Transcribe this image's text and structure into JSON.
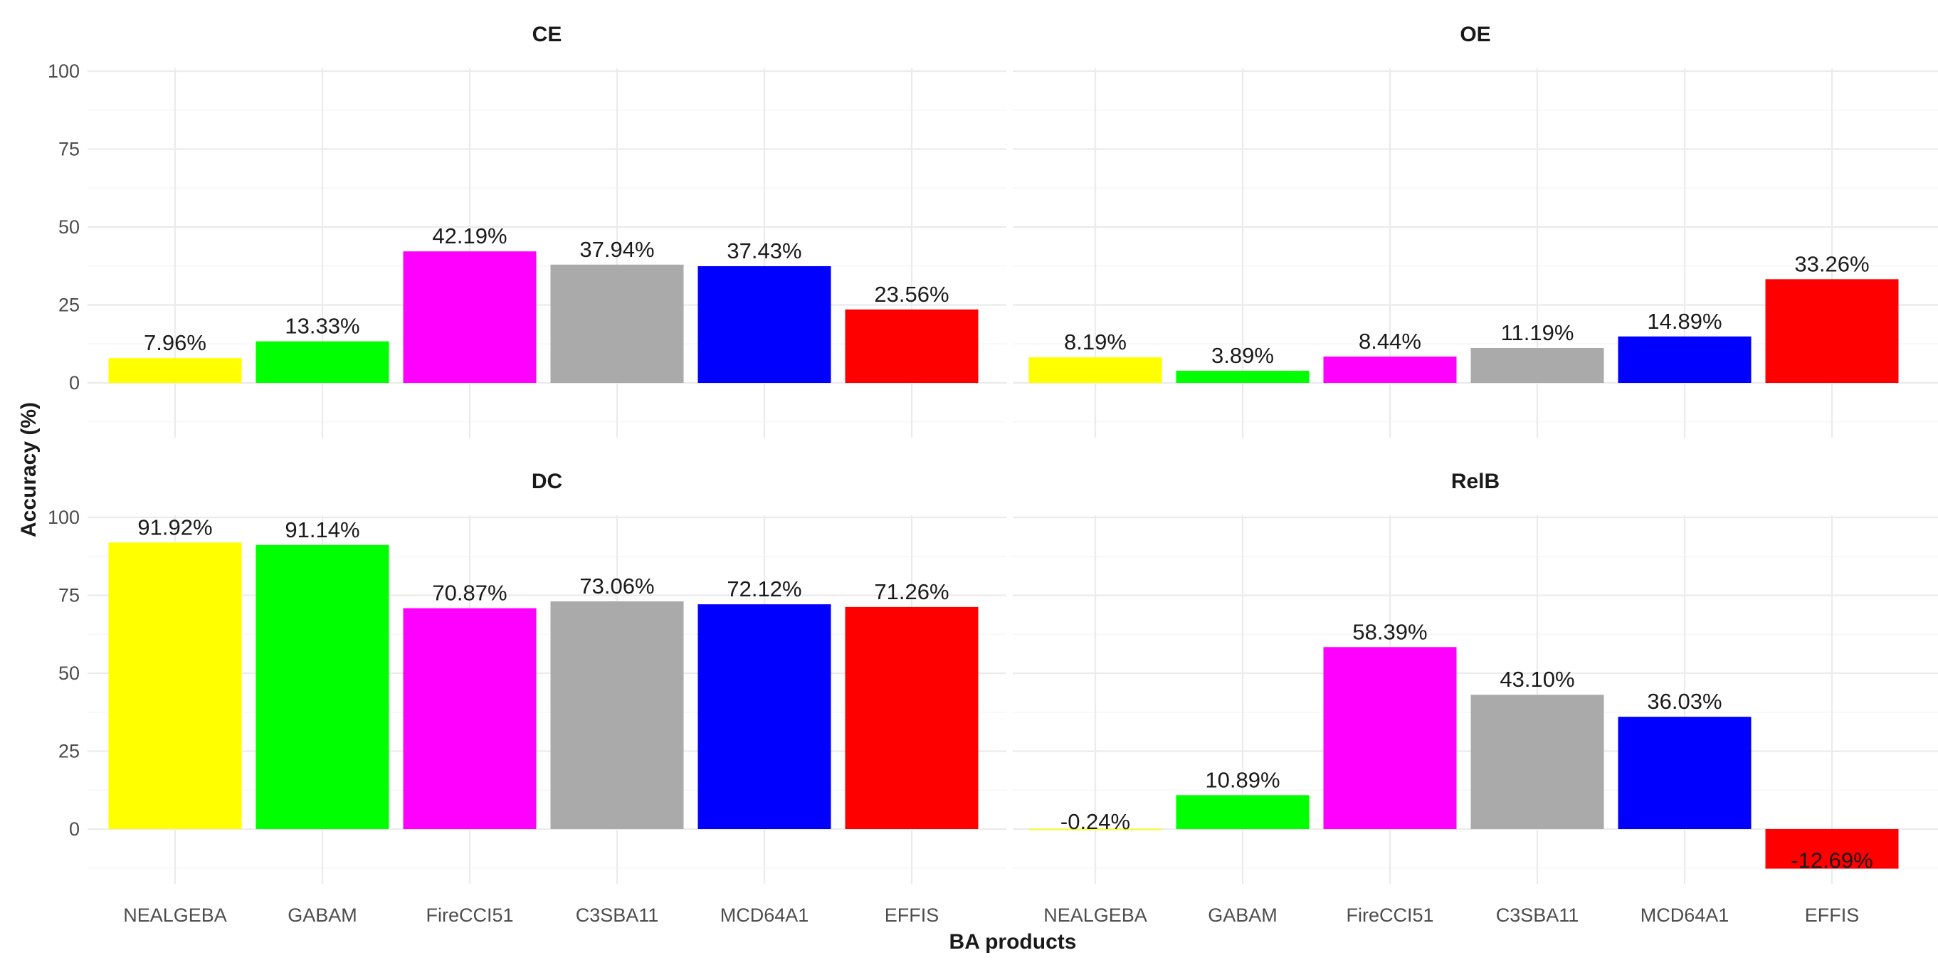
{
  "chart_data": {
    "type": "bar",
    "xlabel": "BA products",
    "ylabel": "Accuracy (%)",
    "categories": [
      "NEALGEBA",
      "GABAM",
      "FireCCI51",
      "C3SBA11",
      "MCD64A1",
      "EFFIS"
    ],
    "colors": [
      "#FFFF00",
      "#00FF00",
      "#FF00FF",
      "#AAAAAA",
      "#0000FF",
      "#FF0000"
    ],
    "yticks": [
      0,
      25,
      50,
      75,
      100
    ],
    "ylim": [
      -13,
      101
    ],
    "grid": true,
    "panels": [
      {
        "title": "CE",
        "values": [
          7.96,
          13.33,
          42.19,
          37.94,
          37.43,
          23.56
        ],
        "labels": [
          "7.96%",
          "13.33%",
          "42.19%",
          "37.94%",
          "37.43%",
          "23.56%"
        ]
      },
      {
        "title": "OE",
        "values": [
          8.19,
          3.89,
          8.44,
          11.19,
          14.89,
          33.26
        ],
        "labels": [
          "8.19%",
          "3.89%",
          "8.44%",
          "11.19%",
          "14.89%",
          "33.26%"
        ]
      },
      {
        "title": "DC",
        "values": [
          91.92,
          91.14,
          70.87,
          73.06,
          72.12,
          71.26
        ],
        "labels": [
          "91.92%",
          "91.14%",
          "70.87%",
          "73.06%",
          "72.12%",
          "71.26%"
        ]
      },
      {
        "title": "RelB",
        "values": [
          -0.24,
          10.89,
          58.39,
          43.1,
          36.03,
          -12.69
        ],
        "labels": [
          "-0.24%",
          "10.89%",
          "58.39%",
          "43.10%",
          "36.03%",
          "-12.69%"
        ]
      }
    ]
  }
}
